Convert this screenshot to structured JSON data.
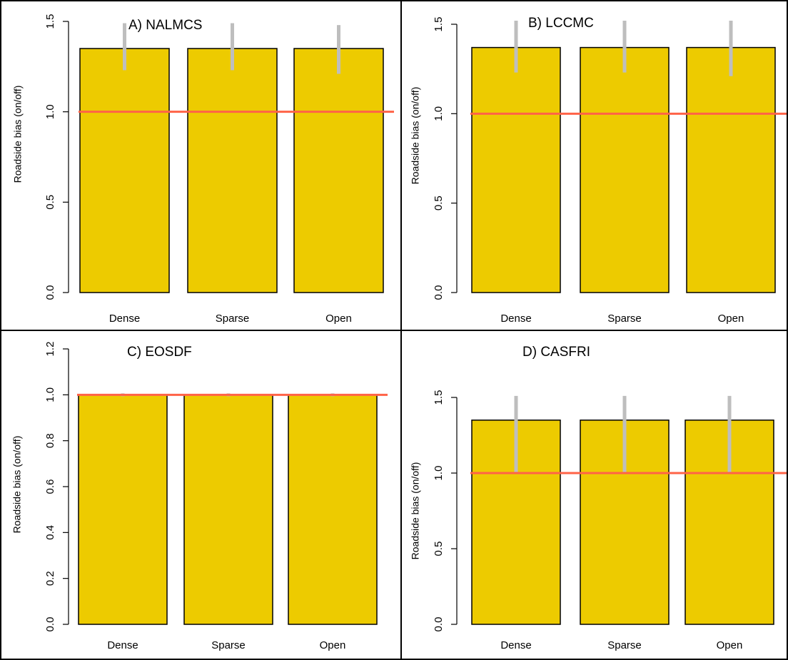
{
  "colors": {
    "bar": "#EDCB00",
    "bar_stroke": "#000000",
    "error_bar": "#BEBEBE",
    "reference_line": "#FF6347",
    "axis": "#000000",
    "text": "#000000"
  },
  "chart_data": [
    {
      "type": "bar",
      "title": "A)  NALMCS",
      "xlabel": "",
      "ylabel": "Roadside bias (on/off)",
      "categories": [
        "Dense",
        "Sparse",
        "Open"
      ],
      "values": [
        1.35,
        1.35,
        1.35
      ],
      "error_low": [
        1.23,
        1.23,
        1.21
      ],
      "error_high": [
        1.49,
        1.49,
        1.48
      ],
      "ylim": [
        0,
        1.5
      ],
      "yticks": [
        "0.0",
        "0.5",
        "1.0",
        "1.5"
      ],
      "yticks_values": [
        0,
        0.5,
        1.0,
        1.5
      ],
      "reference_line": 1.0,
      "grid": false,
      "legend": "none"
    },
    {
      "type": "bar",
      "title": "B)  LCCMC",
      "xlabel": "",
      "ylabel": "Roadside bias (on/off)",
      "categories": [
        "Dense",
        "Sparse",
        "Open"
      ],
      "values": [
        1.37,
        1.37,
        1.37
      ],
      "error_low": [
        1.23,
        1.23,
        1.21
      ],
      "error_high": [
        1.52,
        1.52,
        1.52
      ],
      "ylim": [
        0,
        1.5
      ],
      "yticks": [
        "0.0",
        "0.5",
        "1.0",
        "1.5"
      ],
      "yticks_values": [
        0,
        0.5,
        1.0,
        1.5
      ],
      "reference_line": 1.0,
      "grid": false,
      "legend": "none"
    },
    {
      "type": "bar",
      "title": "C)  EOSDF",
      "xlabel": "",
      "ylabel": "Roadside bias (on/off)",
      "categories": [
        "Dense",
        "Sparse",
        "Open"
      ],
      "values": [
        1.0,
        1.0,
        1.0
      ],
      "error_low": [
        1.0,
        1.0,
        1.0
      ],
      "error_high": [
        1.0,
        1.0,
        1.0
      ],
      "ylim": [
        0,
        1.2
      ],
      "yticks": [
        "0.0",
        "0.2",
        "0.4",
        "0.6",
        "0.8",
        "1.0",
        "1.2"
      ],
      "yticks_values": [
        0,
        0.2,
        0.4,
        0.6,
        0.8,
        1.0,
        1.2
      ],
      "reference_line": 1.0,
      "grid": false,
      "legend": "none"
    },
    {
      "type": "bar",
      "title": "D)  CASFRI",
      "xlabel": "",
      "ylabel": "Roadside bias (on/off)",
      "categories": [
        "Dense",
        "Sparse",
        "Open"
      ],
      "values": [
        1.35,
        1.35,
        1.35
      ],
      "error_low": [
        1.0,
        1.0,
        1.0
      ],
      "error_high": [
        1.51,
        1.51,
        1.51
      ],
      "ylim": [
        0,
        1.5
      ],
      "yticks": [
        "0.0",
        "0.5",
        "1.0",
        "1.5"
      ],
      "yticks_values": [
        0,
        0.5,
        1.0,
        1.5
      ],
      "reference_line": 1.0,
      "grid": false,
      "legend": "none"
    }
  ]
}
